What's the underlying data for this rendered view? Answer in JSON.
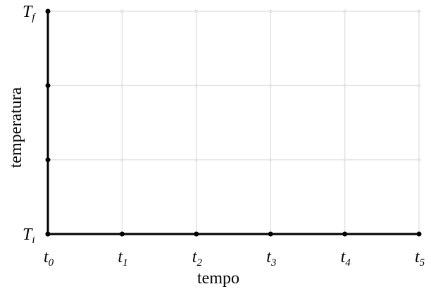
{
  "chart_data": {
    "type": "line",
    "title": "",
    "xlabel": "tempo",
    "ylabel": "temperatura",
    "x_ticks": [
      {
        "base": "t",
        "sub": "0"
      },
      {
        "base": "t",
        "sub": "1"
      },
      {
        "base": "t",
        "sub": "2"
      },
      {
        "base": "t",
        "sub": "3"
      },
      {
        "base": "t",
        "sub": "4"
      },
      {
        "base": "t",
        "sub": "5"
      }
    ],
    "y_ticks": [
      {
        "base": "T",
        "sub": "i"
      },
      {
        "base": "",
        "sub": ""
      },
      {
        "base": "",
        "sub": ""
      },
      {
        "base": "T",
        "sub": "f"
      }
    ],
    "xlim": [
      0,
      5
    ],
    "ylim": [
      0,
      3
    ],
    "grid": true,
    "series": [],
    "colors": {
      "axis": "#000000",
      "grid": "#e3e3e3"
    }
  }
}
